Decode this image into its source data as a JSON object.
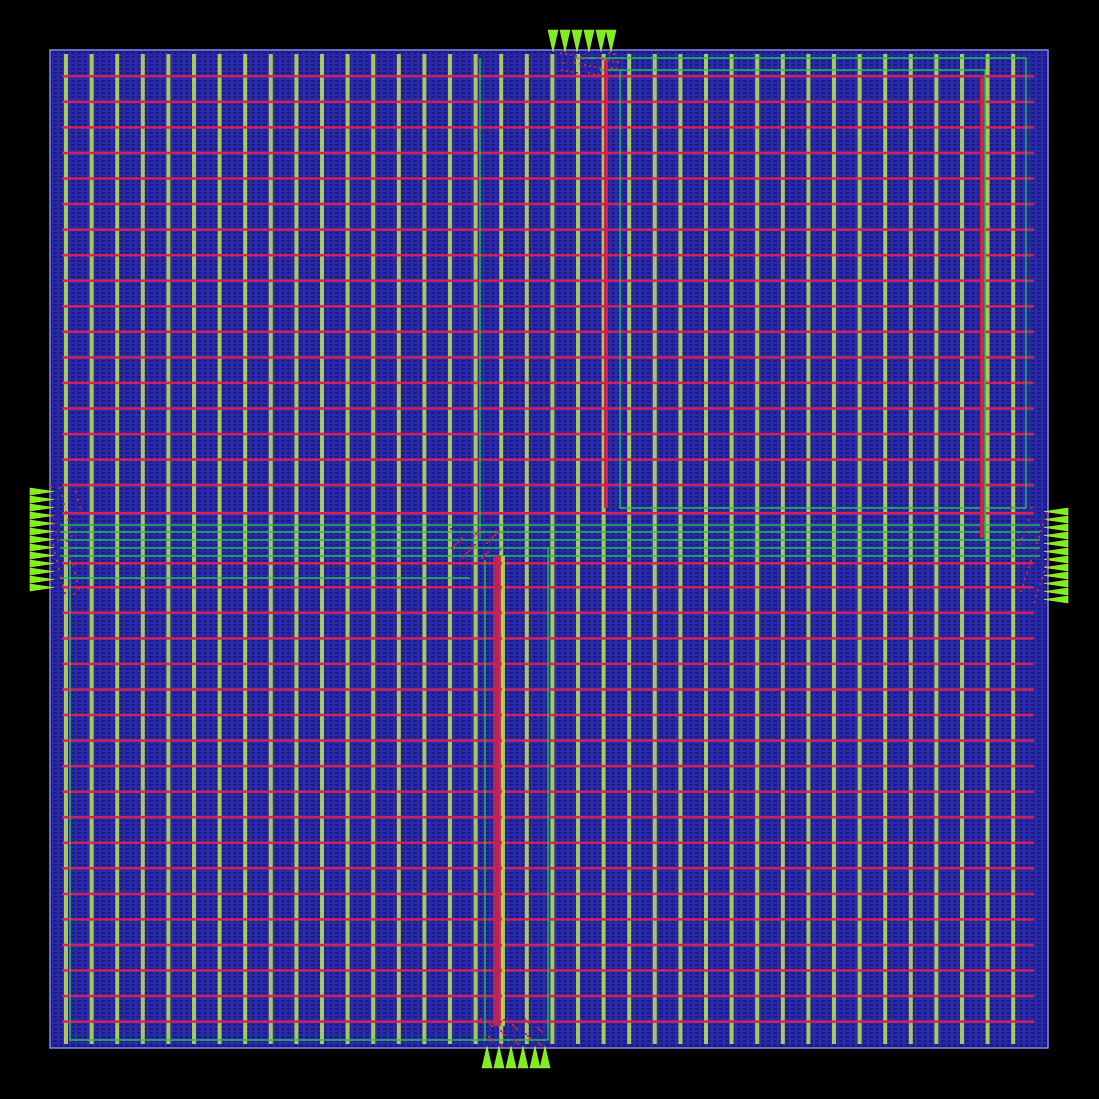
{
  "view": {
    "description_visible_text": "",
    "colors": {
      "background": "#000000",
      "die_fill": "#1a1a8c",
      "die_border": "#8a8ae0",
      "row_stripe": "#2a2aa8",
      "cell_dots": "#6060e0",
      "vertical_power": "#b5d655",
      "horizontal_power": "#d0235a",
      "signal_route": "#22c24a",
      "pin": "#7cf01a",
      "pin_outline": "#b5e64a",
      "clock_trunk": "#c8244e"
    },
    "layers": [
      "die-area",
      "standard-cell-rows",
      "vertical-power-straps",
      "horizontal-power-straps",
      "signal-routes",
      "io-pins"
    ]
  }
}
